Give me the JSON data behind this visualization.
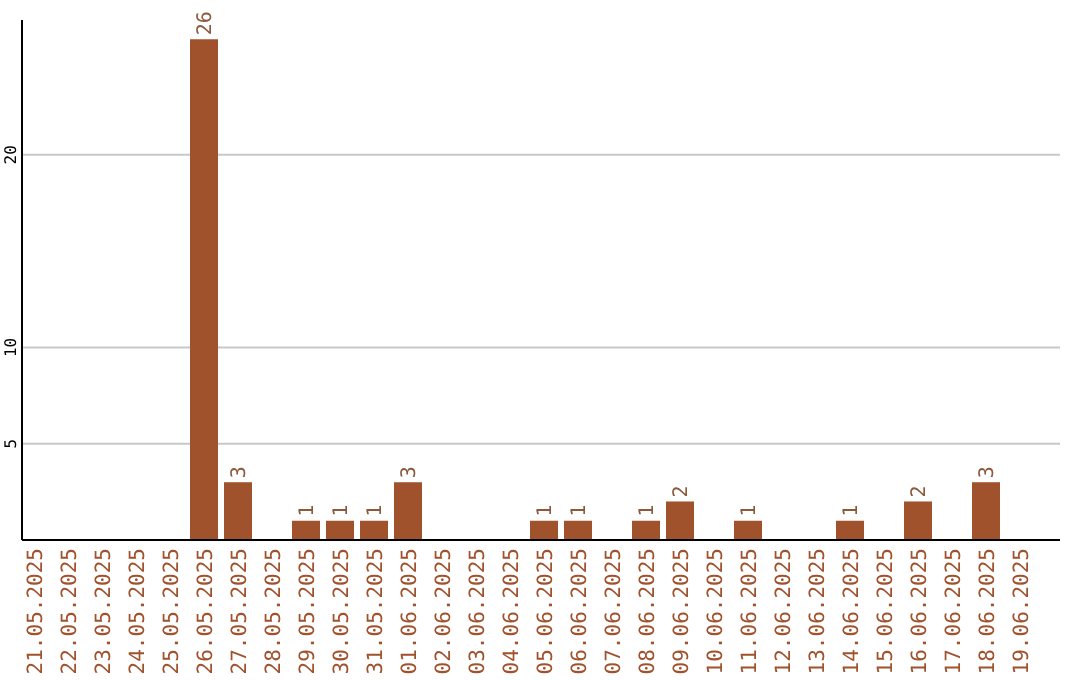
{
  "chart_data": {
    "type": "bar",
    "categories": [
      "21.05.2025",
      "22.05.2025",
      "23.05.2025",
      "24.05.2025",
      "25.05.2025",
      "26.05.2025",
      "27.05.2025",
      "28.05.2025",
      "29.05.2025",
      "30.05.2025",
      "31.05.2025",
      "01.06.2025",
      "02.06.2025",
      "03.06.2025",
      "04.06.2025",
      "05.06.2025",
      "06.06.2025",
      "07.06.2025",
      "08.06.2025",
      "09.06.2025",
      "10.06.2025",
      "11.06.2025",
      "12.06.2025",
      "13.06.2025",
      "14.06.2025",
      "15.06.2025",
      "16.06.2025",
      "17.06.2025",
      "18.06.2025",
      "19.06.2025"
    ],
    "values": [
      0,
      0,
      0,
      0,
      0,
      26,
      3,
      0,
      1,
      1,
      1,
      3,
      0,
      0,
      0,
      1,
      1,
      0,
      1,
      2,
      0,
      1,
      0,
      0,
      1,
      0,
      2,
      0,
      3,
      0
    ],
    "value_labels": [
      null,
      null,
      null,
      null,
      null,
      "26",
      "3",
      null,
      "1",
      "1",
      "1",
      "3",
      null,
      null,
      null,
      "1",
      "1",
      null,
      "1",
      "2",
      null,
      "1",
      null,
      null,
      "1",
      null,
      "2",
      null,
      "3",
      null
    ],
    "color": "#a0522d",
    "ylim": [
      0,
      27
    ],
    "yticks": [
      5,
      10,
      20
    ],
    "grid": "y"
  }
}
